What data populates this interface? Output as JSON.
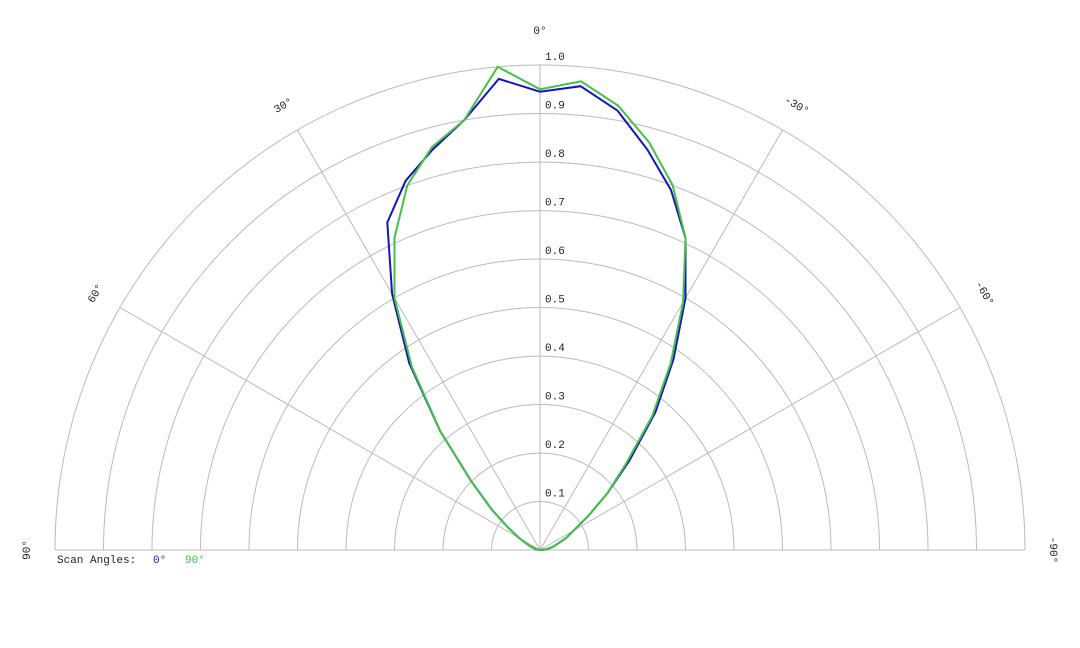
{
  "chart_data": {
    "type": "polar",
    "x": [
      -90,
      -85,
      -80,
      -75,
      -70,
      -65,
      -60,
      -55,
      -50,
      -45,
      -40,
      -35,
      -30,
      -25,
      -20,
      -15,
      -10,
      -5,
      0,
      5,
      10,
      15,
      20,
      25,
      30,
      35,
      40,
      45,
      50,
      55,
      60,
      65,
      70,
      75,
      80,
      85,
      90
    ],
    "series": [
      {
        "name": "0°",
        "color": "#1414c0",
        "values": [
          0,
          0.01,
          0.02,
          0.03,
          0.04,
          0.06,
          0.08,
          0.12,
          0.18,
          0.26,
          0.37,
          0.48,
          0.6,
          0.71,
          0.79,
          0.855,
          0.92,
          0.96,
          0.945,
          0.975,
          0.9,
          0.855,
          0.81,
          0.745,
          0.61,
          0.47,
          0.32,
          0.2,
          0.13,
          0.08,
          0.05,
          0.03,
          0.02,
          0.01,
          0.01,
          0,
          0
        ]
      },
      {
        "name": "90°",
        "color": "#44c244",
        "values": [
          0,
          0.01,
          0.02,
          0.03,
          0.04,
          0.06,
          0.08,
          0.12,
          0.18,
          0.25,
          0.36,
          0.47,
          0.59,
          0.71,
          0.8,
          0.87,
          0.93,
          0.97,
          0.95,
          1.0,
          0.9,
          0.86,
          0.8,
          0.71,
          0.6,
          0.46,
          0.32,
          0.2,
          0.13,
          0.08,
          0.05,
          0.03,
          0.02,
          0.01,
          0.01,
          0,
          0
        ]
      }
    ],
    "legend_title": "Scan Angles:",
    "ylim": [
      0,
      1
    ],
    "yticks": [
      0.1,
      0.2,
      0.3,
      0.4,
      0.5,
      0.6,
      0.7,
      0.8,
      0.9,
      {
        "value": 1,
        "label": "1.0"
      }
    ],
    "xticks": [
      {
        "value": 90,
        "label": "90°"
      },
      {
        "value": 60,
        "label": "60°"
      },
      {
        "value": 30,
        "label": "30°"
      },
      {
        "value": 0,
        "label": "0°"
      },
      {
        "value": -30,
        "label": "-30°"
      },
      {
        "value": -60,
        "label": "-60°"
      },
      {
        "value": -90,
        "label": "-90°"
      }
    ],
    "grid": true
  }
}
